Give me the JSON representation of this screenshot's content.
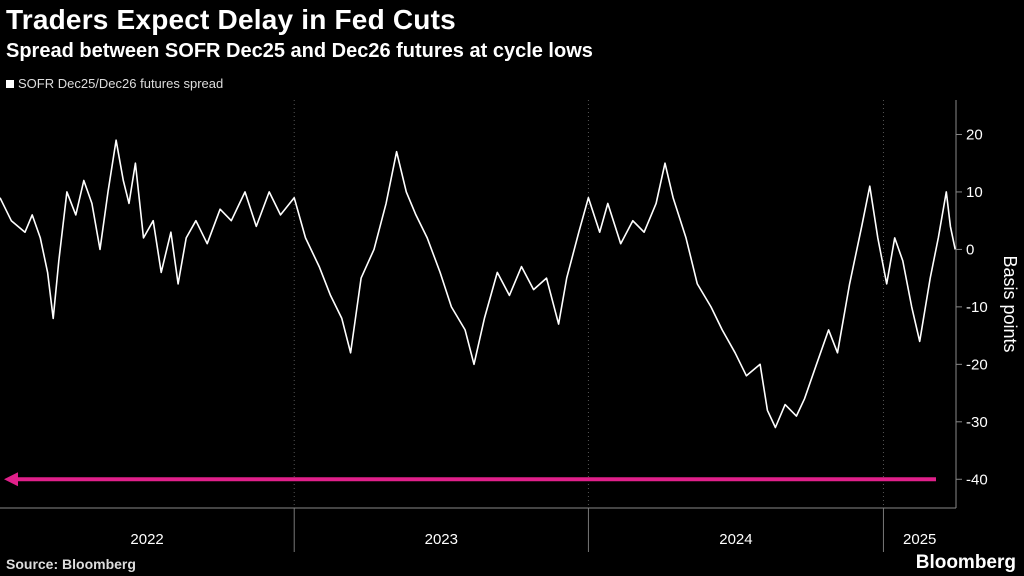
{
  "header": {
    "title": "Traders Expect Delay in Fed Cuts",
    "subtitle": "Spread between SOFR Dec25 and Dec26 futures at cycle lows"
  },
  "footer": {
    "source": "Source: Bloomberg",
    "brand": "Bloomberg"
  },
  "colors": {
    "background": "#000000",
    "series": "#ffffff",
    "highlight": "#e0208a",
    "grid": "#555555"
  },
  "chart_data": {
    "type": "line",
    "title": "Traders Expect Delay in Fed Cuts",
    "subtitle": "Spread between SOFR Dec25 and Dec26 futures at cycle lows",
    "ylabel": "Basis points",
    "xlabel": "",
    "ylim": [
      -45,
      26
    ],
    "y_ticks": [
      20,
      10,
      0,
      -10,
      -20,
      -30,
      -40
    ],
    "x_ticks": [
      "2022",
      "2023",
      "2024",
      "2025"
    ],
    "x_range": [
      "2022-01-01",
      "2025-04-01"
    ],
    "grid": "vertical dotted",
    "legend_position": "top-left",
    "series": [
      {
        "name": "SOFR Dec25/Dec26 futures spread",
        "points": [
          [
            "2022-01-01",
            9
          ],
          [
            "2022-01-15",
            5
          ],
          [
            "2022-02-01",
            3
          ],
          [
            "2022-02-10",
            6
          ],
          [
            "2022-02-20",
            2
          ],
          [
            "2022-03-01",
            -4
          ],
          [
            "2022-03-08",
            -12
          ],
          [
            "2022-03-15",
            -2
          ],
          [
            "2022-03-25",
            10
          ],
          [
            "2022-04-05",
            6
          ],
          [
            "2022-04-15",
            12
          ],
          [
            "2022-04-25",
            8
          ],
          [
            "2022-05-05",
            0
          ],
          [
            "2022-05-15",
            10
          ],
          [
            "2022-05-25",
            19
          ],
          [
            "2022-06-03",
            12
          ],
          [
            "2022-06-10",
            8
          ],
          [
            "2022-06-18",
            15
          ],
          [
            "2022-06-28",
            2
          ],
          [
            "2022-07-10",
            5
          ],
          [
            "2022-07-20",
            -4
          ],
          [
            "2022-08-01",
            3
          ],
          [
            "2022-08-10",
            -6
          ],
          [
            "2022-08-20",
            2
          ],
          [
            "2022-09-01",
            5
          ],
          [
            "2022-09-15",
            1
          ],
          [
            "2022-10-01",
            7
          ],
          [
            "2022-10-15",
            5
          ],
          [
            "2022-11-01",
            10
          ],
          [
            "2022-11-15",
            4
          ],
          [
            "2022-12-01",
            10
          ],
          [
            "2022-12-15",
            6
          ],
          [
            "2023-01-01",
            9
          ],
          [
            "2023-01-15",
            2
          ],
          [
            "2023-02-01",
            -3
          ],
          [
            "2023-02-15",
            -8
          ],
          [
            "2023-03-01",
            -12
          ],
          [
            "2023-03-12",
            -18
          ],
          [
            "2023-03-25",
            -5
          ],
          [
            "2023-04-10",
            0
          ],
          [
            "2023-04-25",
            8
          ],
          [
            "2023-05-08",
            17
          ],
          [
            "2023-05-20",
            10
          ],
          [
            "2023-06-01",
            6
          ],
          [
            "2023-06-15",
            2
          ],
          [
            "2023-07-01",
            -4
          ],
          [
            "2023-07-15",
            -10
          ],
          [
            "2023-08-01",
            -14
          ],
          [
            "2023-08-12",
            -20
          ],
          [
            "2023-08-25",
            -12
          ],
          [
            "2023-09-10",
            -4
          ],
          [
            "2023-09-25",
            -8
          ],
          [
            "2023-10-10",
            -3
          ],
          [
            "2023-10-25",
            -7
          ],
          [
            "2023-11-10",
            -5
          ],
          [
            "2023-11-25",
            -13
          ],
          [
            "2023-12-05",
            -5
          ],
          [
            "2023-12-20",
            3
          ],
          [
            "2024-01-01",
            9
          ],
          [
            "2024-01-15",
            3
          ],
          [
            "2024-01-25",
            8
          ],
          [
            "2024-02-10",
            1
          ],
          [
            "2024-02-25",
            5
          ],
          [
            "2024-03-10",
            3
          ],
          [
            "2024-03-25",
            8
          ],
          [
            "2024-04-05",
            15
          ],
          [
            "2024-04-15",
            9
          ],
          [
            "2024-05-01",
            2
          ],
          [
            "2024-05-15",
            -6
          ],
          [
            "2024-06-01",
            -10
          ],
          [
            "2024-06-15",
            -14
          ],
          [
            "2024-07-01",
            -18
          ],
          [
            "2024-07-15",
            -22
          ],
          [
            "2024-08-01",
            -20
          ],
          [
            "2024-08-10",
            -28
          ],
          [
            "2024-08-20",
            -31
          ],
          [
            "2024-09-01",
            -27
          ],
          [
            "2024-09-15",
            -29
          ],
          [
            "2024-09-25",
            -26
          ],
          [
            "2024-10-10",
            -20
          ],
          [
            "2024-10-25",
            -14
          ],
          [
            "2024-11-05",
            -18
          ],
          [
            "2024-11-20",
            -6
          ],
          [
            "2024-12-05",
            4
          ],
          [
            "2024-12-15",
            11
          ],
          [
            "2024-12-25",
            2
          ],
          [
            "2025-01-05",
            -6
          ],
          [
            "2025-01-15",
            2
          ],
          [
            "2025-01-25",
            -2
          ],
          [
            "2025-02-05",
            -10
          ],
          [
            "2025-02-15",
            -16
          ],
          [
            "2025-02-28",
            -5
          ],
          [
            "2025-03-10",
            2
          ],
          [
            "2025-03-20",
            10
          ],
          [
            "2025-03-25",
            4
          ],
          [
            "2025-03-31",
            0
          ]
        ]
      }
    ],
    "annotations": [
      {
        "type": "horizontal_arrow",
        "y": -40,
        "direction": "left",
        "color": "#e0208a"
      }
    ]
  }
}
